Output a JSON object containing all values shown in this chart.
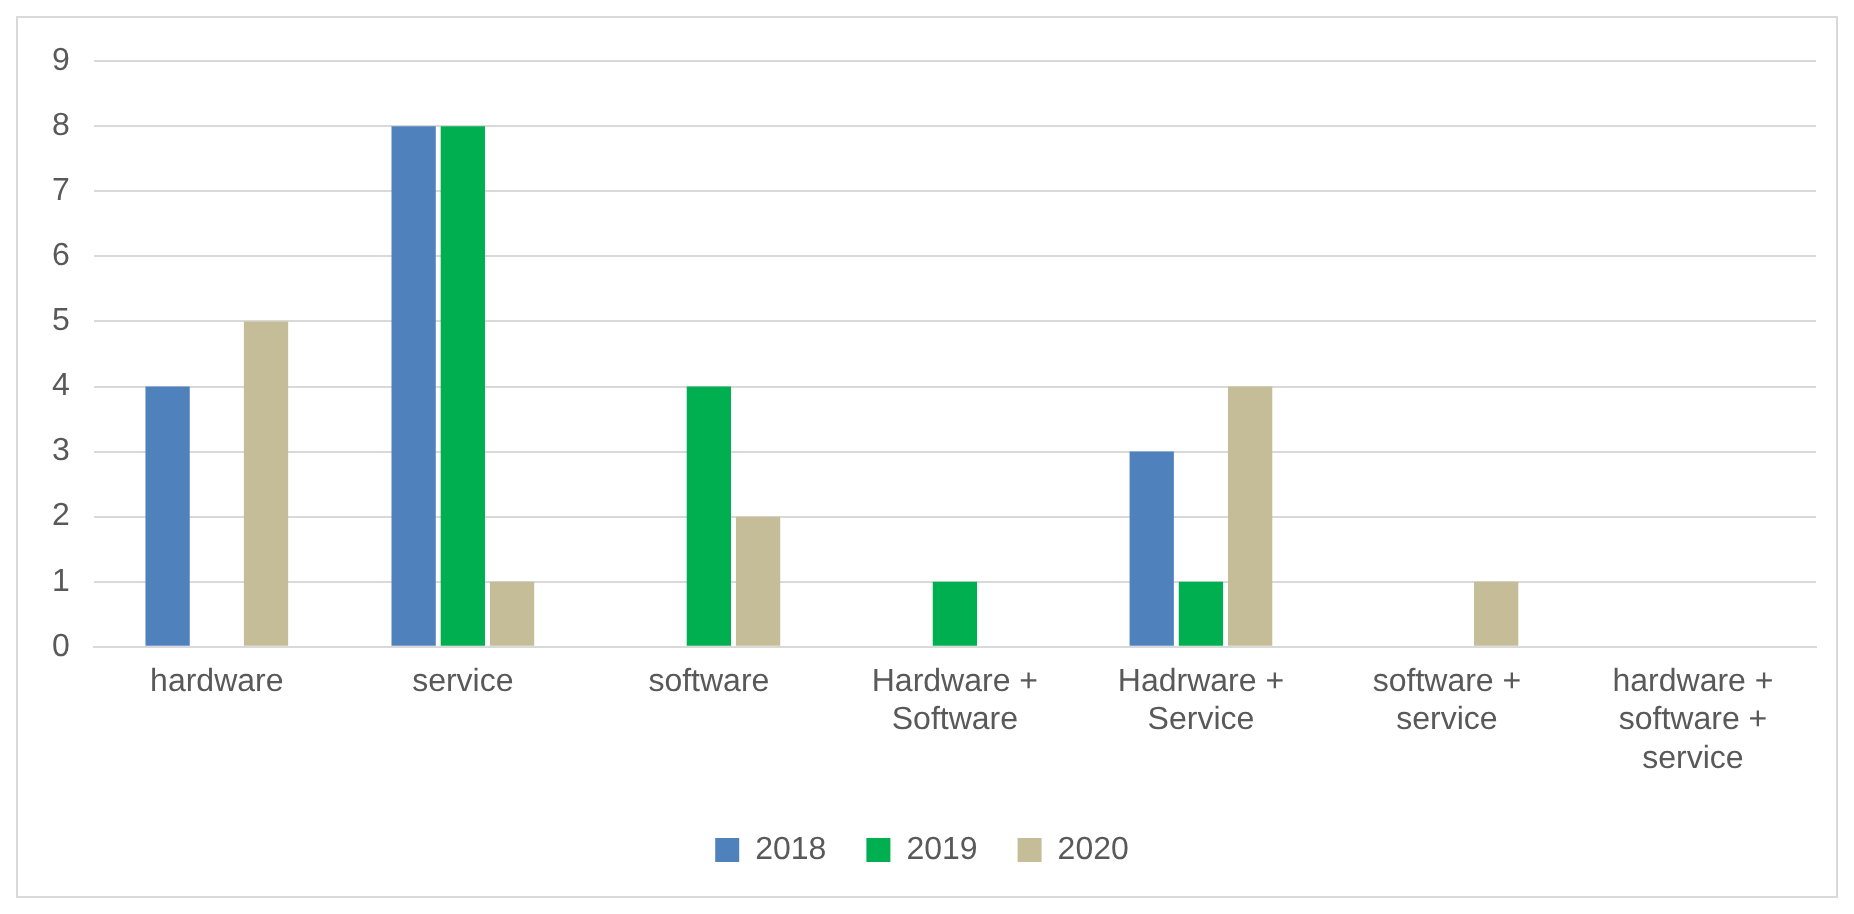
{
  "chart_data": {
    "type": "bar",
    "categories": [
      "hardware",
      "service",
      "software",
      "Hardware + Software",
      "Hadrware + Service",
      "software + service",
      "hardware + software + service"
    ],
    "series": [
      {
        "name": "2018",
        "color": "#4f81bd",
        "values": [
          4,
          8,
          0,
          0,
          3,
          0,
          0
        ]
      },
      {
        "name": "2019",
        "color": "#00b050",
        "values": [
          0,
          8,
          4,
          1,
          1,
          0,
          0
        ]
      },
      {
        "name": "2020",
        "color": "#c4bd97",
        "values": [
          5,
          1,
          2,
          0,
          4,
          1,
          0
        ]
      }
    ],
    "ylim": [
      0,
      9
    ],
    "yticks": [
      0,
      1,
      2,
      3,
      4,
      5,
      6,
      7,
      8,
      9
    ],
    "grid": "y",
    "legend": "bottom"
  }
}
